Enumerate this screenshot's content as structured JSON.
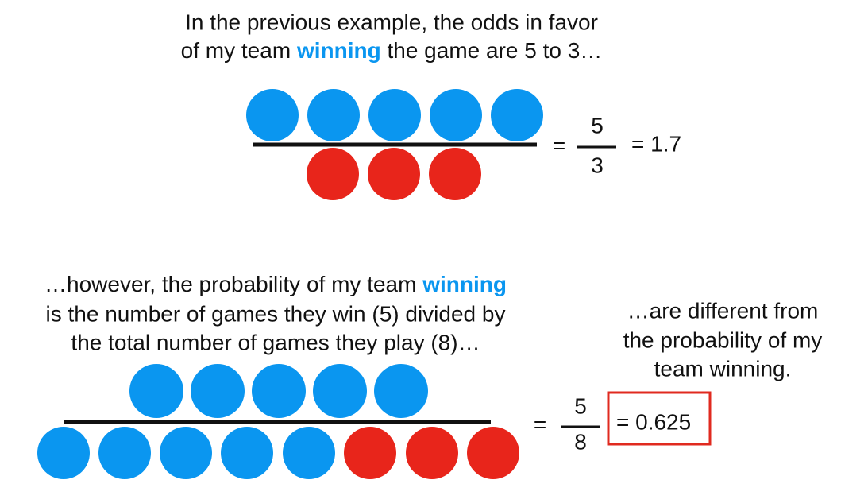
{
  "top": {
    "line1": "In the previous example, the odds in favor",
    "line2_start": "of my team ",
    "line2_highlight": "winning",
    "line2_end": " the game are 5 to 3…"
  },
  "odds": {
    "equals": "=",
    "numerator": "5",
    "denominator": "3",
    "result": "= 1.7"
  },
  "probability_text": {
    "line1_start": "…however, the probability of my team ",
    "line1_highlight": "winning",
    "line2": "is the number of games they win (5) divided by",
    "line3": "the total number of games they play (8)…"
  },
  "note": {
    "line1": "…are different from",
    "line2": "the probability of my",
    "line3": "team winning."
  },
  "probability": {
    "equals": "=",
    "numerator": "5",
    "denominator": "8",
    "result": "= 0.625"
  }
}
